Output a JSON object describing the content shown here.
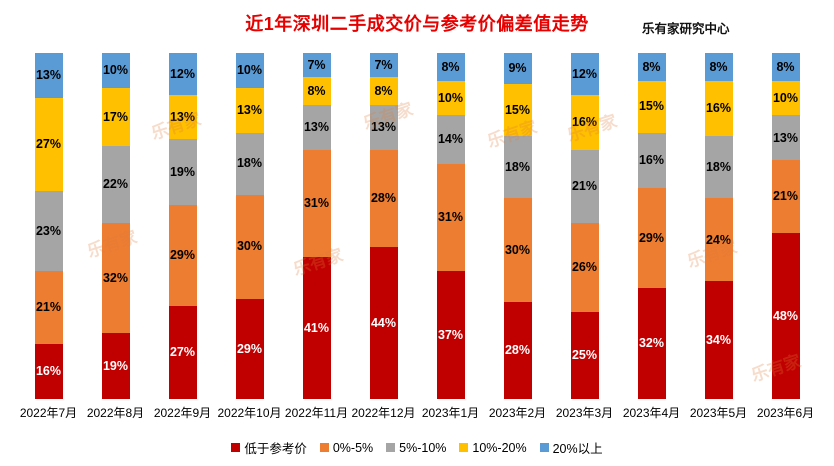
{
  "header": {
    "title": "近1年深圳二手成交价与参考价偏差值走势",
    "source": "乐有家研究中心"
  },
  "watermark": {
    "text": "乐有家"
  },
  "chart_data": {
    "type": "bar",
    "stacked": true,
    "percent_stacked": true,
    "grid": false,
    "legend_position": "bottom",
    "ylim": [
      0,
      100
    ],
    "value_suffix": "%",
    "title": "近1年深圳二手成交价与参考价偏差值走势",
    "xlabel": "",
    "ylabel": "",
    "categories": [
      "2022年7月",
      "2022年8月",
      "2022年9月",
      "2022年10月",
      "2022年11月",
      "2022年12月",
      "2023年1月",
      "2023年2月",
      "2023年3月",
      "2023年4月",
      "2023年5月",
      "2023年6月"
    ],
    "series": [
      {
        "name": "低于参考价",
        "color": "#c00000",
        "label_color": "#ffffff",
        "values": [
          16,
          19,
          27,
          29,
          41,
          44,
          37,
          28,
          25,
          32,
          34,
          48
        ]
      },
      {
        "name": "0%-5%",
        "color": "#ed7d31",
        "label_color": "#000000",
        "values": [
          21,
          32,
          29,
          30,
          31,
          28,
          31,
          30,
          26,
          29,
          24,
          21
        ]
      },
      {
        "name": "5%-10%",
        "color": "#a5a5a5",
        "label_color": "#000000",
        "values": [
          23,
          22,
          19,
          18,
          13,
          13,
          14,
          18,
          21,
          16,
          18,
          13
        ]
      },
      {
        "name": "10%-20%",
        "color": "#ffc000",
        "label_color": "#000000",
        "values": [
          27,
          17,
          13,
          13,
          8,
          8,
          10,
          15,
          16,
          15,
          16,
          10
        ]
      },
      {
        "name": "20%以上",
        "color": "#5b9bd5",
        "label_color": "#000000",
        "values": [
          13,
          10,
          12,
          10,
          7,
          7,
          8,
          9,
          12,
          8,
          8,
          8
        ]
      }
    ]
  }
}
